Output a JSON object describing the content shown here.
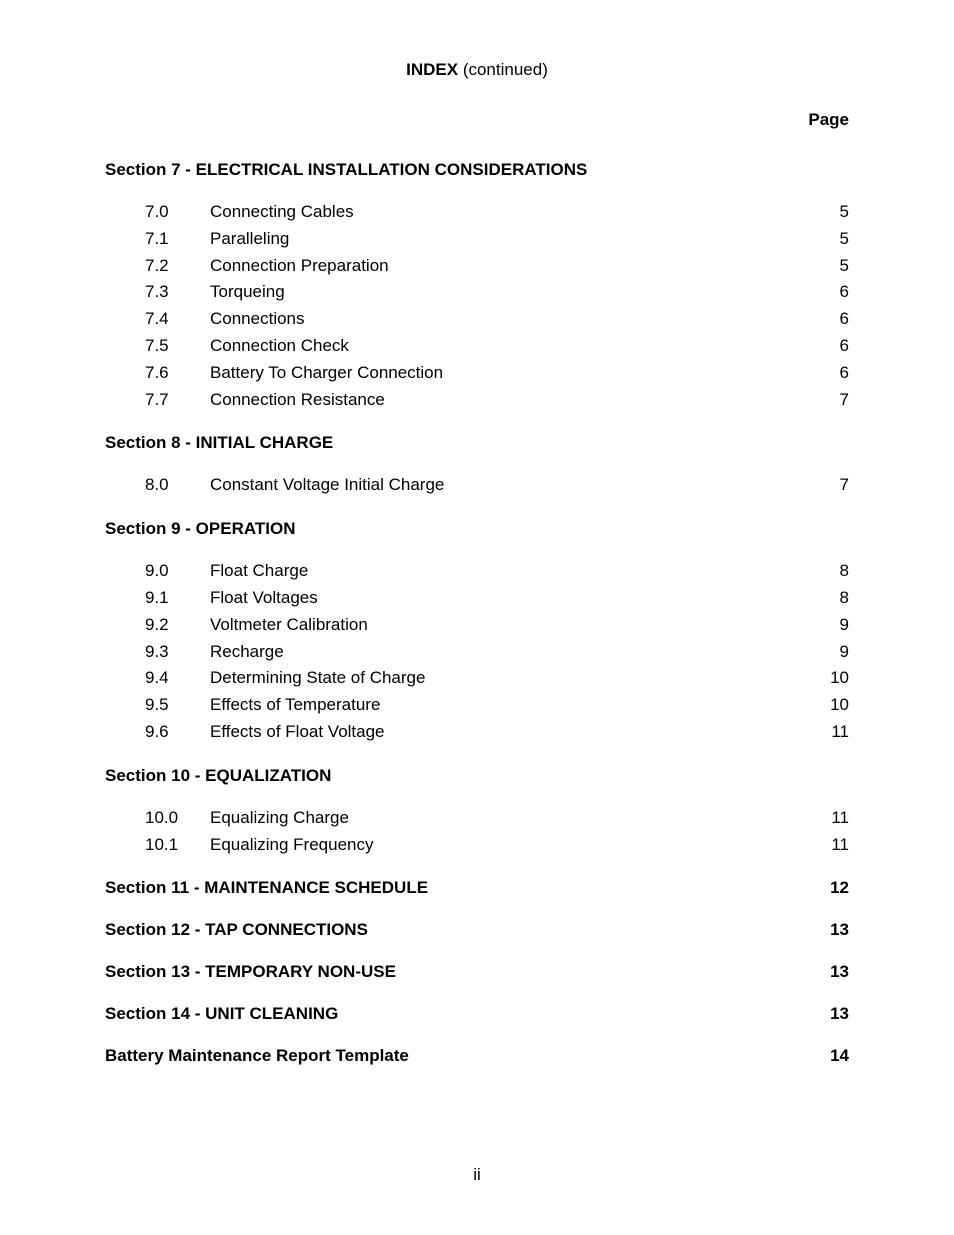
{
  "header": {
    "title_bold": "INDEX",
    "title_suffix": " (continued)"
  },
  "page_label": "Page",
  "sections": [
    {
      "title": "Section 7 - ELECTRICAL INSTALLATION CONSIDERATIONS",
      "entries": [
        {
          "num": "7.0",
          "title": "Connecting Cables",
          "page": "5"
        },
        {
          "num": "7.1",
          "title": "Paralleling",
          "page": "5"
        },
        {
          "num": "7.2",
          "title": "Connection Preparation",
          "page": "5"
        },
        {
          "num": "7.3",
          "title": "Torqueing",
          "page": "6"
        },
        {
          "num": "7.4",
          "title": "Connections",
          "page": "6"
        },
        {
          "num": "7.5",
          "title": "Connection Check",
          "page": "6"
        },
        {
          "num": "7.6",
          "title": "Battery To Charger Connection",
          "page": "6"
        },
        {
          "num": "7.7",
          "title": "Connection Resistance",
          "page": "7"
        }
      ]
    },
    {
      "title": "Section 8 - INITIAL CHARGE",
      "entries": [
        {
          "num": "8.0",
          "title": "Constant Voltage Initial Charge",
          "page": "7"
        }
      ]
    },
    {
      "title": "Section 9 - OPERATION",
      "entries": [
        {
          "num": "9.0",
          "title": "Float Charge",
          "page": "8"
        },
        {
          "num": "9.1",
          "title": "Float Voltages",
          "page": "8"
        },
        {
          "num": "9.2",
          "title": "Voltmeter Calibration",
          "page": "9"
        },
        {
          "num": "9.3",
          "title": "Recharge",
          "page": "9"
        },
        {
          "num": "9.4",
          "title": "Determining State of Charge",
          "page": "10"
        },
        {
          "num": "9.5",
          "title": "Effects of Temperature",
          "page": "10"
        },
        {
          "num": "9.6",
          "title": "Effects of Float Voltage",
          "page": "11"
        }
      ]
    },
    {
      "title": "Section 10 - EQUALIZATION",
      "entries": [
        {
          "num": "10.0",
          "title": "Equalizing Charge",
          "page": "11"
        },
        {
          "num": "10.1",
          "title": "Equalizing Frequency",
          "page": "11"
        }
      ]
    }
  ],
  "section_lines": [
    {
      "title": "Section 11 - MAINTENANCE SCHEDULE",
      "page": "12"
    },
    {
      "title": "Section 12 - TAP CONNECTIONS",
      "page": "13"
    },
    {
      "title": "Section 13 - TEMPORARY NON-USE",
      "page": "13"
    },
    {
      "title": "Section 14 - UNIT CLEANING",
      "page": "13"
    },
    {
      "title": "Battery Maintenance Report Template",
      "page": "14"
    }
  ],
  "page_number": "ii"
}
